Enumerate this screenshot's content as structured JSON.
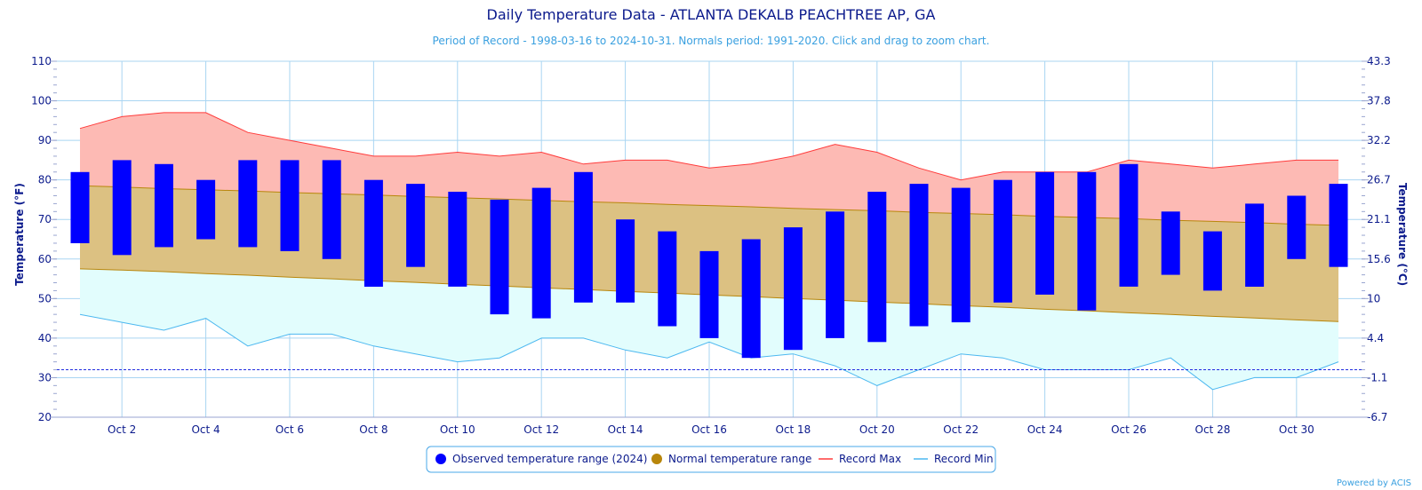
{
  "chart_data": {
    "type": "bar",
    "title": "Daily Temperature Data - ATLANTA DEKALB PEACHTREE AP, GA",
    "subtitle": "Period of Record - 1998-03-16 to 2024-10-31. Normals period: 1991-2020. Click and drag to zoom chart.",
    "ylabel": "Temperature (°F)",
    "y2label": "Temperature (°C)",
    "ylim": [
      20,
      110
    ],
    "yticks": [
      "20",
      "30",
      "40",
      "50",
      "60",
      "70",
      "80",
      "90",
      "100",
      "110"
    ],
    "y2ticks": [
      "-6.7",
      "-1.1",
      "4.4",
      "10",
      "15.6",
      "21.1",
      "26.7",
      "32.2",
      "37.8",
      "43.3"
    ],
    "xlim": [
      1,
      31
    ],
    "xticks": [
      {
        "day": 2,
        "label": "Oct 2"
      },
      {
        "day": 4,
        "label": "Oct 4"
      },
      {
        "day": 6,
        "label": "Oct 6"
      },
      {
        "day": 8,
        "label": "Oct 8"
      },
      {
        "day": 10,
        "label": "Oct 10"
      },
      {
        "day": 12,
        "label": "Oct 12"
      },
      {
        "day": 14,
        "label": "Oct 14"
      },
      {
        "day": 16,
        "label": "Oct 16"
      },
      {
        "day": 18,
        "label": "Oct 18"
      },
      {
        "day": 20,
        "label": "Oct 20"
      },
      {
        "day": 22,
        "label": "Oct 22"
      },
      {
        "day": 24,
        "label": "Oct 24"
      },
      {
        "day": 26,
        "label": "Oct 26"
      },
      {
        "day": 28,
        "label": "Oct 28"
      },
      {
        "day": 30,
        "label": "Oct 30"
      }
    ],
    "freezing_line": 32,
    "days": [
      1,
      2,
      3,
      4,
      5,
      6,
      7,
      8,
      9,
      10,
      11,
      12,
      13,
      14,
      15,
      16,
      17,
      18,
      19,
      20,
      21,
      22,
      23,
      24,
      25,
      26,
      27,
      28,
      29,
      30,
      31
    ],
    "series": [
      {
        "name": "Observed temperature range (2024)",
        "high": [
          82,
          85,
          84,
          80,
          85,
          85,
          85,
          80,
          79,
          77,
          75,
          78,
          82,
          70,
          67,
          62,
          65,
          68,
          72,
          77,
          79,
          78,
          80,
          82,
          82,
          84,
          72,
          67,
          74,
          76,
          79
        ],
        "low": [
          64,
          61,
          63,
          65,
          63,
          62,
          60,
          53,
          58,
          53,
          46,
          45,
          49,
          49,
          43,
          40,
          35,
          37,
          40,
          39,
          43,
          44,
          49,
          51,
          47,
          53,
          56,
          52,
          53,
          60,
          58
        ]
      },
      {
        "name": "Normal temperature range",
        "high": [
          78.5,
          78.2,
          77.8,
          77.5,
          77.2,
          76.8,
          76.5,
          76.2,
          75.8,
          75.5,
          75.2,
          74.8,
          74.5,
          74.2,
          73.8,
          73.5,
          73.2,
          72.8,
          72.5,
          72.2,
          71.8,
          71.5,
          71.2,
          70.8,
          70.5,
          70.2,
          69.8,
          69.5,
          69.2,
          68.8,
          68.5
        ],
        "low": [
          57.5,
          57.2,
          56.8,
          56.3,
          55.9,
          55.4,
          55.0,
          54.5,
          54.1,
          53.6,
          53.2,
          52.7,
          52.3,
          51.8,
          51.4,
          50.9,
          50.5,
          50.0,
          49.6,
          49.1,
          48.7,
          48.2,
          47.8,
          47.3,
          46.9,
          46.4,
          46.0,
          45.5,
          45.1,
          44.6,
          44.2
        ]
      },
      {
        "name": "Record Max",
        "values": [
          93,
          96,
          97,
          97,
          92,
          90,
          88,
          86,
          86,
          87,
          86,
          87,
          84,
          85,
          85,
          83,
          84,
          86,
          89,
          87,
          83,
          80,
          82,
          82,
          82,
          85,
          84,
          83,
          84,
          85,
          85
        ]
      },
      {
        "name": "Record Min",
        "values": [
          46,
          44,
          42,
          45,
          38,
          41,
          41,
          38,
          36,
          34,
          35,
          40,
          40,
          37,
          35,
          39,
          35,
          36,
          33,
          28,
          32,
          36,
          35,
          32,
          32,
          32,
          35,
          27,
          30,
          30,
          34
        ]
      }
    ],
    "colors": {
      "observed": "#0000ff",
      "normal_fill": "#dcc182",
      "normal_line": "#b8860b",
      "normal_legend": "#b8860b",
      "record_max_line": "#ff3b3b",
      "record_max_fill": "#fdbab4",
      "record_min_line": "#4cb8f0",
      "record_min_fill": "#e2fdfd",
      "grid": "#a9d5f2",
      "freezing": "#1f2be0",
      "text": "#0b1a8c",
      "subtitle": "#3aa0e0"
    },
    "legend_position": "bottom-center",
    "grid": true
  },
  "credit": "Powered by ACIS"
}
